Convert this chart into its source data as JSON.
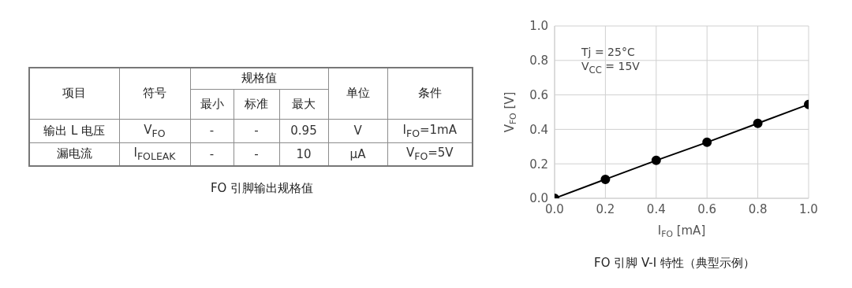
{
  "chart_data": [
    {
      "type": "other",
      "title": "FO 引脚输出规格值",
      "annotations": [
        "项目",
        "符号",
        "规格值",
        "最小",
        "标准",
        "最大",
        "单位",
        "条件",
        "输出 L 电压",
        "V$_{FO}$",
        "-",
        "-",
        "0.95",
        "V",
        "I$_{FO}$=1mA",
        "漏电流",
        "I$_{FOLEAK}$",
        "-",
        "-",
        "10",
        "μA",
        "V$_{FO}$=5V"
      ]
    },
    {
      "type": "line",
      "title": "FO 引脚 V-I 特性（典型示例）",
      "xlabel": "I$_{FO}$ [mA]",
      "ylabel": "V$_{FO}$ [V]",
      "annotations": [
        "Tj = 25°C",
        "V$_{CC}$ = 15V"
      ],
      "x": [
        0,
        0.2,
        0.4,
        0.6,
        0.8,
        1.0
      ],
      "series": [
        {
          "color": "#000000",
          "values": [
            0,
            0.11,
            0.22,
            0.325,
            0.435,
            0.545
          ]
        }
      ],
      "xlim": [
        0,
        1
      ],
      "ylim": [
        0,
        1
      ],
      "xticks": [
        {
          "value": 0,
          "label": "0.0"
        },
        {
          "value": 0.2,
          "label": "0.2"
        },
        {
          "value": 0.4,
          "label": "0.4"
        },
        {
          "value": 0.6,
          "label": "0.6"
        },
        {
          "value": 0.8,
          "label": "0.8"
        },
        {
          "value": 1,
          "label": "1.0"
        }
      ],
      "yticks": [
        {
          "value": 0,
          "label": "0.0"
        },
        {
          "value": 0.2,
          "label": "0.2"
        },
        {
          "value": 0.4,
          "label": "0.4"
        },
        {
          "value": 0.6,
          "label": "0.6"
        },
        {
          "value": 0.8,
          "label": "0.8"
        },
        {
          "value": 1,
          "label": "1.0"
        }
      ],
      "grid": true,
      "marker": "circle",
      "line_style": "solid"
    }
  ]
}
